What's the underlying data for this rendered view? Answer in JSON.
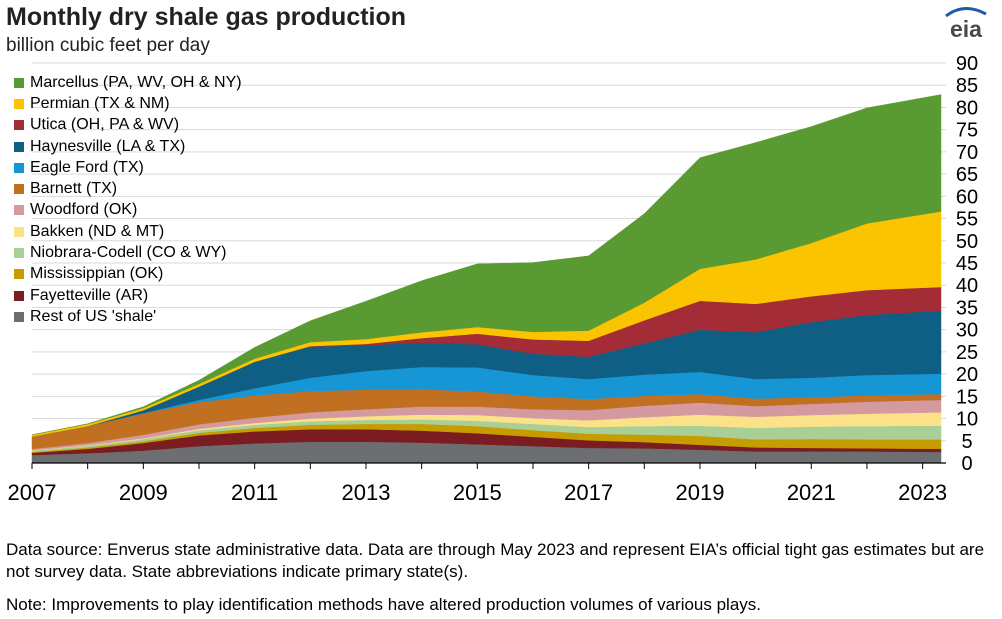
{
  "title": "Monthly dry shale gas production",
  "subtitle": "billion cubic feet per day",
  "logo_text": "eia",
  "footer": {
    "source": "Data source: Enverus state administrative data. Data are through May 2023 and represent EIA’s official tight gas estimates but are not survey data. State abbreviations indicate primary state(s).",
    "note": "Note: Improvements to play identification methods have altered production volumes of various plays."
  },
  "chart_data": {
    "type": "area",
    "stacked": true,
    "title": "Monthly dry shale gas production",
    "ylabel": "billion cubic feet per day",
    "xlabel": "",
    "ylim": [
      0,
      90
    ],
    "xlim": [
      2007.0,
      2023.42
    ],
    "y_ticks": [
      0,
      5,
      10,
      15,
      20,
      25,
      30,
      35,
      40,
      45,
      50,
      55,
      60,
      65,
      70,
      75,
      80,
      85,
      90
    ],
    "x_ticks": [
      "2007",
      "2009",
      "2011",
      "2013",
      "2015",
      "2017",
      "2019",
      "2021",
      "2023"
    ],
    "y_axis_side": "right",
    "legend_position": "top-left",
    "grid": true,
    "x": [
      2007,
      2008,
      2009,
      2010,
      2011,
      2012,
      2013,
      2014,
      2015,
      2016,
      2017,
      2018,
      2019,
      2020,
      2021,
      2022,
      2023.33
    ],
    "series": [
      {
        "name": "Rest of US 'shale'",
        "color": "#6d6e71",
        "values": [
          1.8,
          2.2,
          2.8,
          3.8,
          4.4,
          4.8,
          4.8,
          4.6,
          4.2,
          3.8,
          3.4,
          3.3,
          3.0,
          2.6,
          2.6,
          2.6,
          2.5
        ]
      },
      {
        "name": "Fayetteville (AR)",
        "color": "#7b1c20",
        "values": [
          0.5,
          1.0,
          1.7,
          2.4,
          2.7,
          2.8,
          2.8,
          2.7,
          2.5,
          2.1,
          1.7,
          1.4,
          1.1,
          0.9,
          0.8,
          0.7,
          0.7
        ]
      },
      {
        "name": "Mississippian (OK)",
        "color": "#c69c00",
        "values": [
          0.2,
          0.3,
          0.4,
          0.6,
          0.8,
          1.0,
          1.2,
          1.5,
          1.6,
          1.5,
          1.5,
          1.7,
          2.0,
          1.8,
          2.0,
          2.0,
          2.1
        ]
      },
      {
        "name": "Niobrara-Codell (CO & WY)",
        "color": "#a8cf96",
        "values": [
          0.3,
          0.4,
          0.5,
          0.6,
          0.7,
          0.8,
          0.9,
          1.0,
          1.2,
          1.4,
          1.5,
          1.9,
          2.3,
          2.6,
          2.8,
          3.0,
          3.1
        ]
      },
      {
        "name": "Bakken (ND & MT)",
        "color": "#fbe288",
        "values": [
          0.05,
          0.1,
          0.15,
          0.3,
          0.4,
          0.6,
          0.8,
          1.1,
          1.3,
          1.3,
          1.5,
          2.0,
          2.5,
          2.5,
          2.6,
          2.8,
          3.0
        ]
      },
      {
        "name": "Woodford (OK)",
        "color": "#d59aa0",
        "values": [
          0.3,
          0.5,
          0.8,
          1.0,
          1.2,
          1.4,
          1.6,
          1.8,
          1.9,
          2.0,
          2.3,
          2.6,
          2.7,
          2.4,
          2.5,
          2.7,
          2.8
        ]
      },
      {
        "name": "Barnett (TX)",
        "color": "#c16f21",
        "values": [
          2.8,
          3.8,
          4.8,
          5.0,
          5.0,
          4.8,
          4.4,
          3.9,
          3.4,
          2.9,
          2.5,
          2.2,
          1.9,
          1.7,
          1.5,
          1.4,
          1.3
        ]
      },
      {
        "name": "Eagle Ford (TX)",
        "color": "#1796d5",
        "values": [
          0.0,
          0.0,
          0.1,
          0.5,
          1.6,
          3.0,
          4.2,
          5.0,
          5.4,
          4.8,
          4.5,
          4.8,
          5.0,
          4.4,
          4.4,
          4.6,
          4.6
        ]
      },
      {
        "name": "Haynesville (LA & TX)",
        "color": "#0f5f84",
        "values": [
          0.0,
          0.0,
          0.6,
          3.0,
          6.0,
          7.0,
          5.8,
          5.5,
          5.2,
          4.8,
          5.0,
          7.0,
          9.5,
          10.5,
          12.5,
          13.5,
          14.2
        ]
      },
      {
        "name": "Utica (OH, PA & WV)",
        "color": "#a32c37",
        "values": [
          0.0,
          0.0,
          0.0,
          0.0,
          0.0,
          0.1,
          0.3,
          1.0,
          2.4,
          3.2,
          3.6,
          5.2,
          6.5,
          6.4,
          5.8,
          5.6,
          5.3
        ]
      },
      {
        "name": "Permian (TX & NM)",
        "color": "#fbc400",
        "values": [
          0.4,
          0.45,
          0.5,
          0.6,
          0.7,
          0.9,
          1.1,
          1.3,
          1.5,
          1.7,
          2.3,
          4.0,
          7.2,
          10.0,
          12.0,
          15.0,
          17.0
        ]
      },
      {
        "name": "Marcellus (PA, WV, OH & NY)",
        "color": "#5a9a32",
        "values": [
          0.0,
          0.1,
          0.3,
          0.8,
          2.5,
          4.8,
          8.5,
          11.6,
          14.2,
          15.6,
          16.8,
          20.0,
          25.0,
          26.3,
          26.2,
          26.0,
          26.3
        ]
      }
    ]
  }
}
